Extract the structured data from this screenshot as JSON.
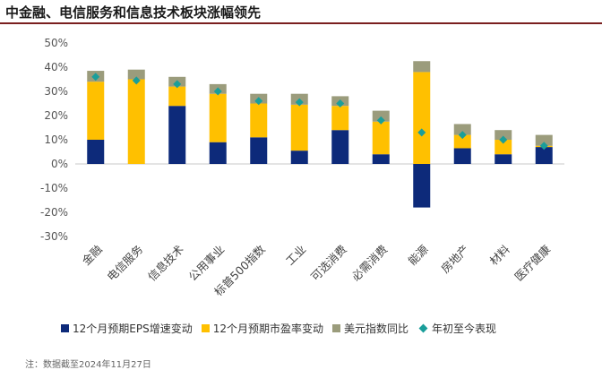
{
  "title": "中金融、电信服务和信息技术板块涨幅领先",
  "source": "注：数据截至2024年11月27日",
  "colors": {
    "eps": "#0d2a7a",
    "pe": "#ffc000",
    "usd": "#9b9c7c",
    "ytd": "#1a9e9a"
  },
  "legend": [
    "12个月预期EPS增速变动",
    "12个月预期市盈率变动",
    "美元指数同比",
    "年初至今表现"
  ],
  "chart_data": {
    "type": "bar",
    "stacked": true,
    "categories": [
      "金融",
      "电信服务",
      "信息技术",
      "公用事业",
      "标普500指数",
      "工业",
      "可选消费",
      "必需消费",
      "能源",
      "房地产",
      "材料",
      "医疗健康"
    ],
    "y_tick_labels": [
      "50%",
      "40%",
      "30%",
      "20%",
      "10%",
      "0%",
      "-10%",
      "-20%",
      "-30%"
    ],
    "ylim": [
      -30,
      50
    ],
    "series": [
      {
        "name": "12个月预期EPS增速变动",
        "type": "bar",
        "values": [
          10,
          0,
          24,
          9,
          11,
          5.5,
          14,
          4,
          -18,
          6.5,
          4,
          7
        ]
      },
      {
        "name": "12个月预期市盈率变动",
        "type": "bar",
        "values": [
          24,
          35,
          8,
          20,
          14,
          19,
          10,
          13.5,
          38,
          5.5,
          6,
          0.5
        ]
      },
      {
        "name": "美元指数同比",
        "type": "bar",
        "values": [
          4.5,
          4,
          4,
          4,
          4,
          4.5,
          4,
          4.5,
          4.5,
          4.5,
          4,
          4.5
        ]
      },
      {
        "name": "年初至今表现",
        "type": "scatter",
        "values": [
          36,
          34.5,
          33,
          30,
          26,
          25.5,
          25,
          18,
          13,
          12,
          10,
          7.5
        ]
      }
    ],
    "grid": false,
    "legend_position": "bottom"
  }
}
